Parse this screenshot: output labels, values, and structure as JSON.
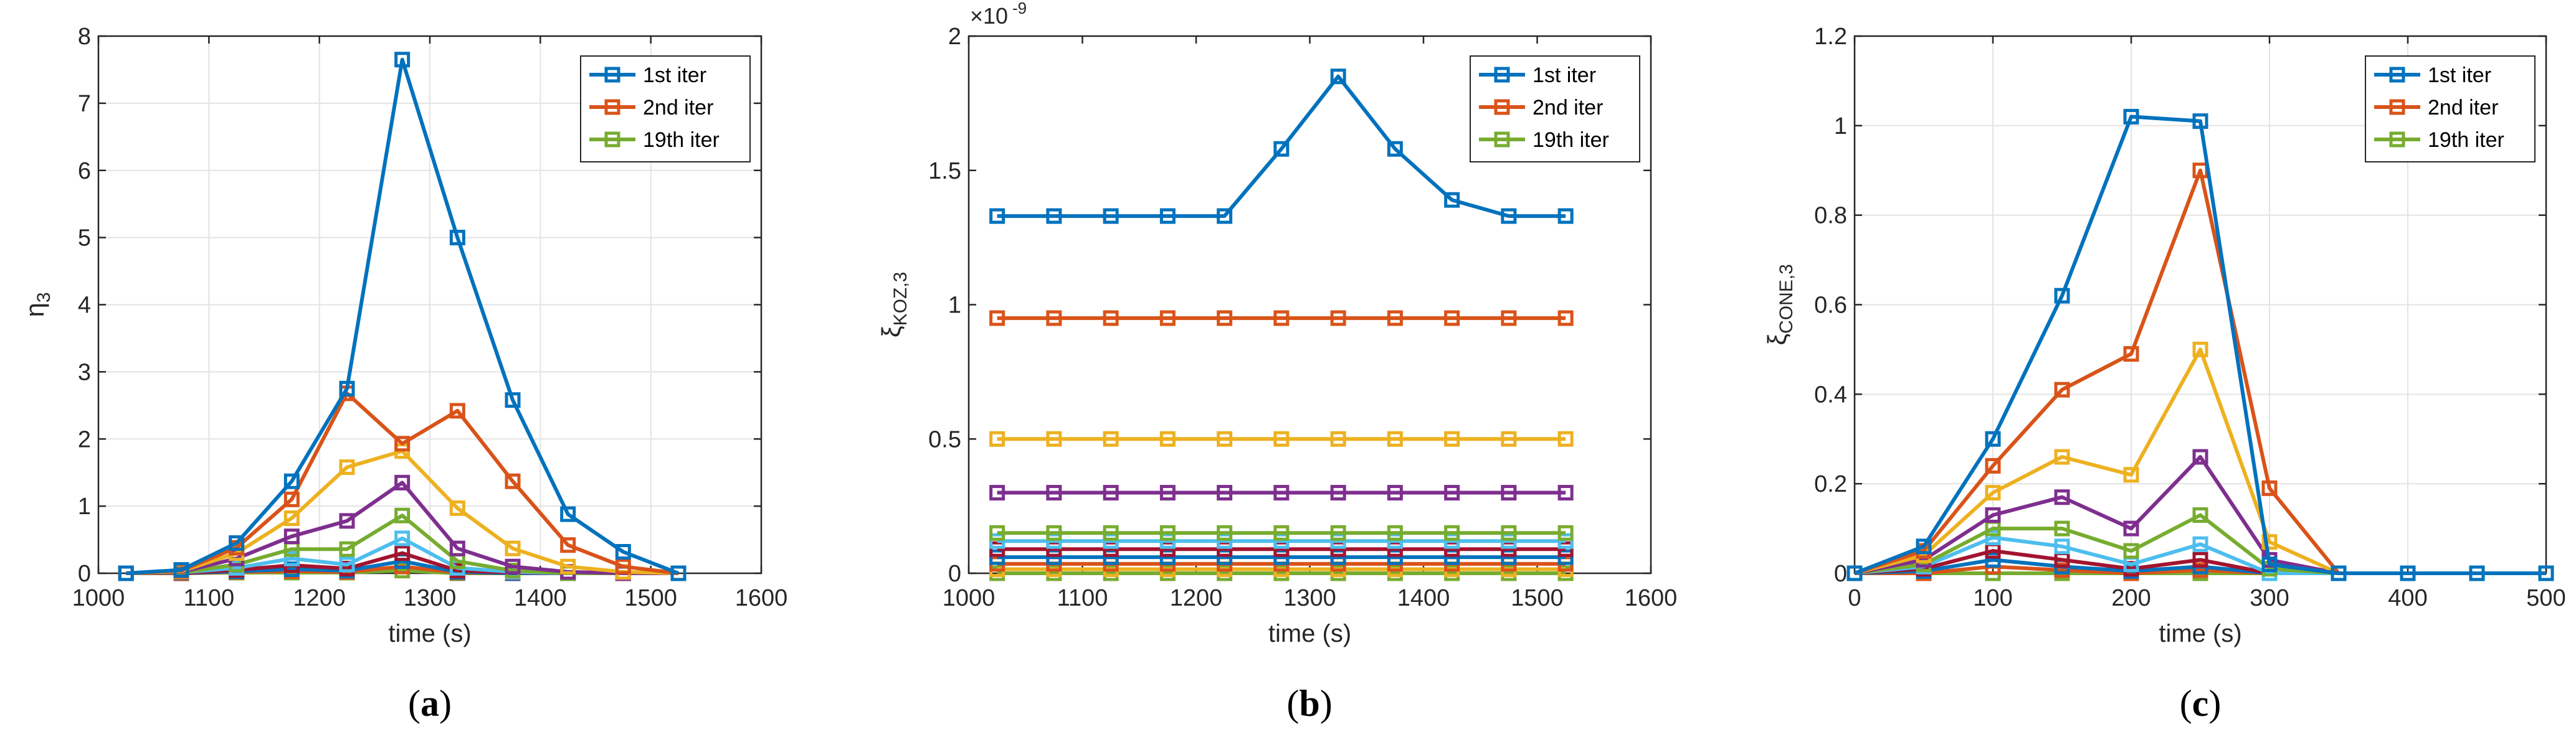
{
  "figure": {
    "colors": [
      "#0072BD",
      "#D95319",
      "#EDB120",
      "#7E2F8E",
      "#77AC30",
      "#4DBEEE",
      "#A2142F"
    ],
    "legend_labels": [
      "1st iter",
      "2nd iter",
      "19th iter"
    ]
  },
  "chart_data": [
    {
      "id": "a",
      "type": "line",
      "caption": "(a)",
      "caption_letter": "a",
      "xlabel": "time (s)",
      "ylabel": "η",
      "ylabel_sub": "3",
      "xlim": [
        1000,
        1600
      ],
      "ylim": [
        0,
        8
      ],
      "xticks": [
        1000,
        1100,
        1200,
        1300,
        1400,
        1500,
        1600
      ],
      "yticks": [
        0,
        1,
        2,
        3,
        4,
        5,
        6,
        7,
        8
      ],
      "ytick_labels": [
        "0",
        "1",
        "2",
        "3",
        "4",
        "5",
        "6",
        "7",
        "8"
      ],
      "exponent": "",
      "grid": true,
      "legend_position": "top-right",
      "x": [
        1025,
        1075,
        1125,
        1175,
        1225,
        1275,
        1325,
        1375,
        1425,
        1475,
        1525
      ],
      "series": [
        {
          "name": "1st iter",
          "color": "#0072BD",
          "values": [
            0,
            0.05,
            0.45,
            1.37,
            2.75,
            7.65,
            5.0,
            2.58,
            0.88,
            0.32,
            0
          ]
        },
        {
          "name": "2nd iter",
          "color": "#D95319",
          "values": [
            0,
            0.04,
            0.38,
            1.1,
            2.68,
            1.93,
            2.42,
            1.37,
            0.42,
            0.1,
            0
          ]
        },
        {
          "name": "",
          "color": "#EDB120",
          "values": [
            0,
            0.03,
            0.3,
            0.82,
            1.58,
            1.82,
            0.97,
            0.37,
            0.1,
            0.02,
            0
          ]
        },
        {
          "name": "",
          "color": "#7E2F8E",
          "values": [
            0,
            0.02,
            0.22,
            0.55,
            0.78,
            1.35,
            0.37,
            0.1,
            0.02,
            0,
            0
          ]
        },
        {
          "name": "19th iter",
          "color": "#77AC30",
          "values": [
            0,
            0.01,
            0.13,
            0.36,
            0.36,
            0.86,
            0.18,
            0.04,
            0,
            0,
            0
          ]
        },
        {
          "name": "",
          "color": "#4DBEEE",
          "values": [
            0,
            0.01,
            0.08,
            0.22,
            0.13,
            0.52,
            0.08,
            0.02,
            0,
            0,
            0
          ]
        },
        {
          "name": "",
          "color": "#A2142F",
          "values": [
            0,
            0,
            0.05,
            0.12,
            0.07,
            0.3,
            0.04,
            0.01,
            0,
            0,
            0
          ]
        },
        {
          "name": "",
          "color": "#0072BD",
          "values": [
            0,
            0,
            0.03,
            0.06,
            0.04,
            0.18,
            0.02,
            0,
            0,
            0,
            0
          ]
        },
        {
          "name": "",
          "color": "#D95319",
          "values": [
            0,
            0,
            0.02,
            0.03,
            0.02,
            0.1,
            0.01,
            0,
            0,
            0,
            0
          ]
        },
        {
          "name": "",
          "color": "#77AC30",
          "values": [
            0,
            0,
            0.01,
            0.01,
            0.01,
            0.04,
            0,
            0,
            0,
            0,
            0
          ]
        }
      ]
    },
    {
      "id": "b",
      "type": "line",
      "caption": "(b)",
      "caption_letter": "b",
      "xlabel": "time (s)",
      "ylabel": "ξ",
      "ylabel_sub": "KOZ,3",
      "xlim": [
        1000,
        1600
      ],
      "ylim": [
        0,
        2
      ],
      "xticks": [
        1000,
        1100,
        1200,
        1300,
        1400,
        1500,
        1600
      ],
      "yticks": [
        0,
        0.5,
        1,
        1.5,
        2
      ],
      "ytick_labels": [
        "0",
        "0.5",
        "1",
        "1.5",
        "2"
      ],
      "exponent": "×10",
      "exponent_power": "-9",
      "grid": false,
      "legend_position": "top-right",
      "x": [
        1025,
        1075,
        1125,
        1175,
        1225,
        1275,
        1325,
        1375,
        1425,
        1475,
        1525
      ],
      "series": [
        {
          "name": "1st iter",
          "color": "#0072BD",
          "values": [
            1.33,
            1.33,
            1.33,
            1.33,
            1.33,
            1.58,
            1.85,
            1.58,
            1.39,
            1.33,
            1.33
          ]
        },
        {
          "name": "2nd iter",
          "color": "#D95319",
          "values": [
            0.95,
            0.95,
            0.95,
            0.95,
            0.95,
            0.95,
            0.95,
            0.95,
            0.95,
            0.95,
            0.95
          ]
        },
        {
          "name": "",
          "color": "#EDB120",
          "values": [
            0.5,
            0.5,
            0.5,
            0.5,
            0.5,
            0.5,
            0.5,
            0.5,
            0.5,
            0.5,
            0.5
          ]
        },
        {
          "name": "",
          "color": "#7E2F8E",
          "values": [
            0.3,
            0.3,
            0.3,
            0.3,
            0.3,
            0.3,
            0.3,
            0.3,
            0.3,
            0.3,
            0.3
          ]
        },
        {
          "name": "19th iter",
          "color": "#77AC30",
          "values": [
            0.15,
            0.15,
            0.15,
            0.15,
            0.15,
            0.15,
            0.15,
            0.15,
            0.15,
            0.15,
            0.15
          ]
        },
        {
          "name": "",
          "color": "#4DBEEE",
          "values": [
            0.12,
            0.12,
            0.12,
            0.12,
            0.12,
            0.12,
            0.12,
            0.12,
            0.12,
            0.12,
            0.12
          ]
        },
        {
          "name": "",
          "color": "#A2142F",
          "values": [
            0.09,
            0.09,
            0.09,
            0.09,
            0.09,
            0.09,
            0.09,
            0.09,
            0.09,
            0.09,
            0.09
          ]
        },
        {
          "name": "",
          "color": "#0072BD",
          "values": [
            0.06,
            0.06,
            0.06,
            0.06,
            0.06,
            0.06,
            0.06,
            0.06,
            0.06,
            0.06,
            0.06
          ]
        },
        {
          "name": "",
          "color": "#D95319",
          "values": [
            0.035,
            0.035,
            0.035,
            0.035,
            0.035,
            0.035,
            0.035,
            0.035,
            0.035,
            0.035,
            0.035
          ]
        },
        {
          "name": "",
          "color": "#EDB120",
          "values": [
            0.015,
            0.015,
            0.015,
            0.015,
            0.015,
            0.015,
            0.015,
            0.015,
            0.015,
            0.015,
            0.015
          ]
        },
        {
          "name": "",
          "color": "#77AC30",
          "values": [
            0,
            0,
            0,
            0,
            0,
            0,
            0,
            0,
            0,
            0,
            0
          ]
        }
      ]
    },
    {
      "id": "c",
      "type": "line",
      "caption": "(c)",
      "caption_letter": "c",
      "xlabel": "time (s)",
      "ylabel": "ξ",
      "ylabel_sub": "CONE,3",
      "xlim": [
        0,
        500
      ],
      "ylim": [
        0,
        1.2
      ],
      "xticks": [
        0,
        100,
        200,
        300,
        400,
        500
      ],
      "yticks": [
        0,
        0.2,
        0.4,
        0.6,
        0.8,
        1,
        1.2
      ],
      "ytick_labels": [
        "0",
        "0.2",
        "0.4",
        "0.6",
        "0.8",
        "1",
        "1.2"
      ],
      "exponent": "",
      "grid": true,
      "legend_position": "top-right",
      "x": [
        0,
        50,
        100,
        150,
        200,
        250,
        300,
        350,
        400,
        450,
        500
      ],
      "series": [
        {
          "name": "1st iter",
          "color": "#0072BD",
          "values": [
            0,
            0.06,
            0.3,
            0.62,
            1.02,
            1.01,
            0.02,
            0,
            0,
            0,
            0
          ]
        },
        {
          "name": "2nd iter",
          "color": "#D95319",
          "values": [
            0,
            0.05,
            0.24,
            0.41,
            0.49,
            0.9,
            0.19,
            0,
            0,
            0,
            0
          ]
        },
        {
          "name": "",
          "color": "#EDB120",
          "values": [
            0,
            0.04,
            0.18,
            0.26,
            0.22,
            0.5,
            0.07,
            0,
            0,
            0,
            0
          ]
        },
        {
          "name": "",
          "color": "#7E2F8E",
          "values": [
            0,
            0.03,
            0.13,
            0.17,
            0.1,
            0.26,
            0.03,
            0,
            0,
            0,
            0
          ]
        },
        {
          "name": "19th iter",
          "color": "#77AC30",
          "values": [
            0,
            0.02,
            0.1,
            0.1,
            0.05,
            0.13,
            0.01,
            0,
            0,
            0,
            0
          ]
        },
        {
          "name": "",
          "color": "#4DBEEE",
          "values": [
            0,
            0.015,
            0.08,
            0.06,
            0.02,
            0.065,
            0,
            0,
            0,
            0,
            0
          ]
        },
        {
          "name": "",
          "color": "#A2142F",
          "values": [
            0,
            0.01,
            0.05,
            0.03,
            0.01,
            0.03,
            0,
            0,
            0,
            0,
            0
          ]
        },
        {
          "name": "",
          "color": "#0072BD",
          "values": [
            0,
            0.005,
            0.03,
            0.015,
            0.005,
            0.015,
            0,
            0,
            0,
            0,
            0
          ]
        },
        {
          "name": "",
          "color": "#D95319",
          "values": [
            0,
            0,
            0.015,
            0.007,
            0,
            0.007,
            0,
            0,
            0,
            0,
            0
          ]
        },
        {
          "name": "",
          "color": "#77AC30",
          "values": [
            0,
            0,
            0,
            0,
            0,
            0,
            0,
            0,
            0,
            0,
            0
          ]
        }
      ]
    }
  ]
}
